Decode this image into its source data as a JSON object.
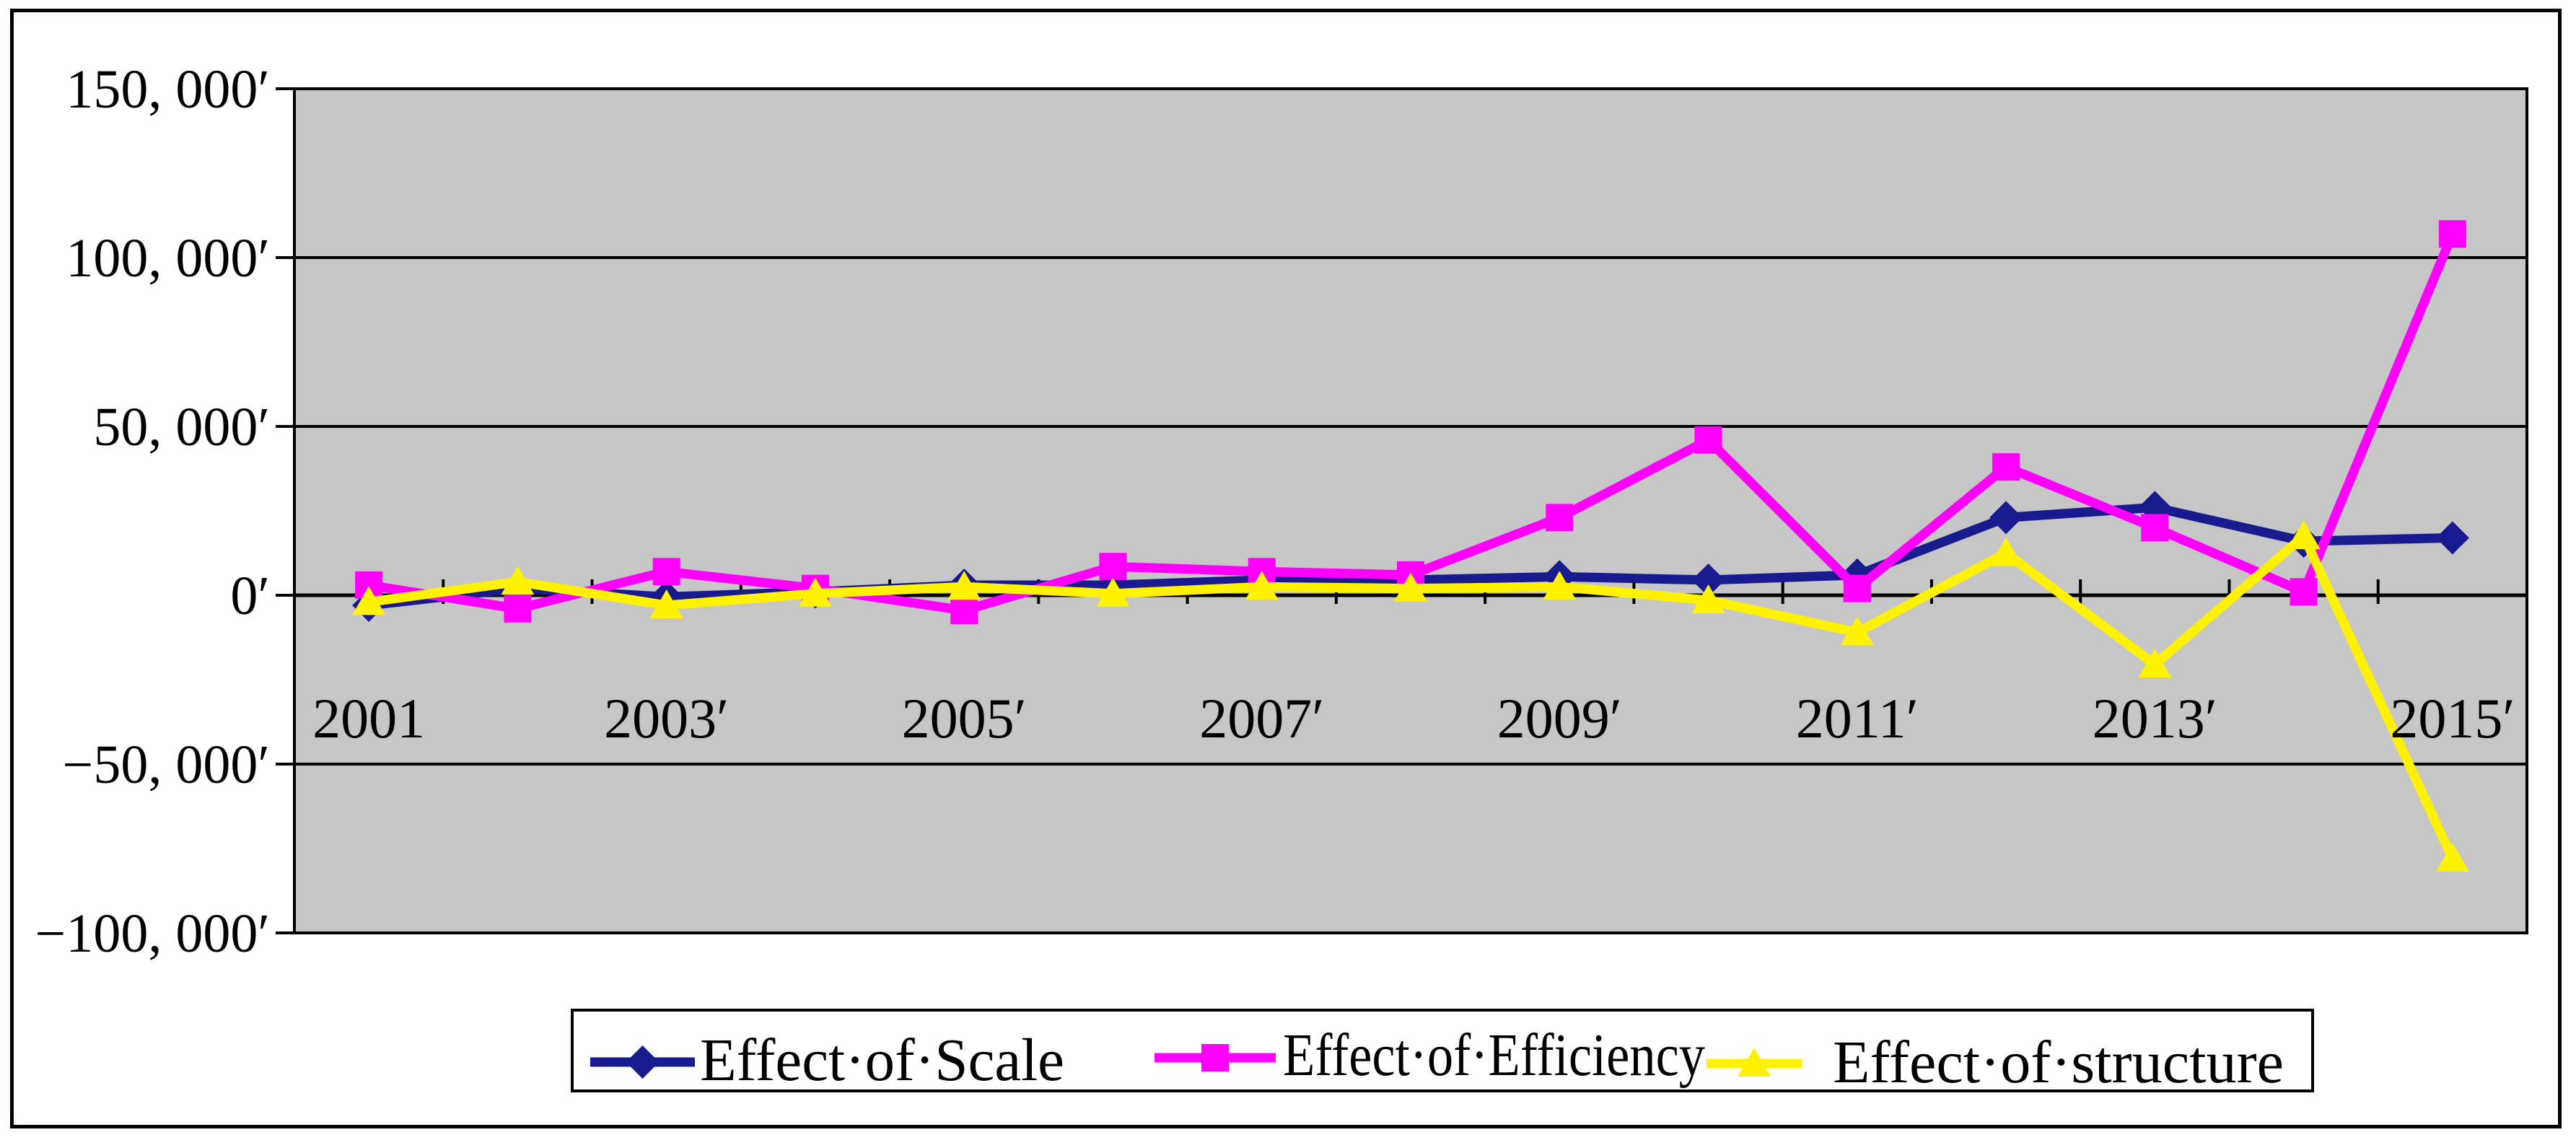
{
  "chart": {
    "colors": {
      "plot_background": "#C6C6C6",
      "grid": "#000000",
      "frame": "#000000",
      "scale_series": "#1A1A8F",
      "efficiency_series": "#FF00FF",
      "structure_series": "#FFF200",
      "legend_background": "#FFFFFF",
      "text": "#000000"
    },
    "axes": {
      "y_tick_display": [
        {
          "value": 150000,
          "label": "150, 000′"
        },
        {
          "value": 100000,
          "label": "100, 000′"
        },
        {
          "value": 50000,
          "label": "50, 000′"
        },
        {
          "value": 0,
          "label": "0′"
        },
        {
          "value": -50000,
          "label": "−50, 000′"
        },
        {
          "value": -100000,
          "label": "−100, 000′"
        }
      ],
      "x_tick_display": [
        {
          "index": 0,
          "label": "2001"
        },
        {
          "index": 2,
          "label": "2003′"
        },
        {
          "index": 4,
          "label": "2005′"
        },
        {
          "index": 6,
          "label": "2007′"
        },
        {
          "index": 8,
          "label": "2009′"
        },
        {
          "index": 10,
          "label": "2011′"
        },
        {
          "index": 12,
          "label": "2013′"
        },
        {
          "index": 14,
          "label": "2015′"
        }
      ]
    },
    "legend": {
      "entries": [
        {
          "label": "Effect·of·Scale",
          "marker": "diamond",
          "color": "#1A1A8F"
        },
        {
          "label": "Effect·of·Efficiency",
          "marker": "square",
          "color": "#FF00FF"
        },
        {
          "label": "Effect·of·structure",
          "marker": "triangle",
          "color": "#FFF200"
        }
      ]
    }
  },
  "chart_data": {
    "type": "line",
    "title": "",
    "xlabel": "",
    "ylabel": "",
    "x": [
      2001,
      2002,
      2003,
      2004,
      2005,
      2006,
      2007,
      2008,
      2009,
      2010,
      2011,
      2012,
      2013,
      2014,
      2015
    ],
    "x_axis_labels_shown": [
      "2001",
      "2003",
      "2005",
      "2007",
      "2009",
      "2011",
      "2013",
      "2015"
    ],
    "ylim": [
      -100000,
      150000
    ],
    "y_tick_step": 50000,
    "grid": "horizontal",
    "plot_background": "#C6C6C6",
    "legend_position": "bottom",
    "series": [
      {
        "name": "Effect of Scale",
        "marker": "diamond",
        "color": "#1A1A8F",
        "values": [
          -3000,
          2000,
          -500,
          1000,
          3000,
          3000,
          4500,
          4500,
          5500,
          4500,
          6000,
          23000,
          26000,
          16000,
          17000
        ]
      },
      {
        "name": "Effect of Efficiency",
        "marker": "square",
        "color": "#FF00FF",
        "values": [
          3000,
          -4000,
          7000,
          2000,
          -4500,
          8500,
          7000,
          6000,
          23000,
          46000,
          2000,
          38000,
          20000,
          1000,
          107000
        ]
      },
      {
        "name": "Effect of structure",
        "marker": "triangle",
        "color": "#FFF200",
        "values": [
          -2000,
          4000,
          -3000,
          500,
          2500,
          500,
          2500,
          2000,
          2500,
          -1500,
          -11000,
          12500,
          -20500,
          17500,
          -78000
        ]
      }
    ]
  }
}
